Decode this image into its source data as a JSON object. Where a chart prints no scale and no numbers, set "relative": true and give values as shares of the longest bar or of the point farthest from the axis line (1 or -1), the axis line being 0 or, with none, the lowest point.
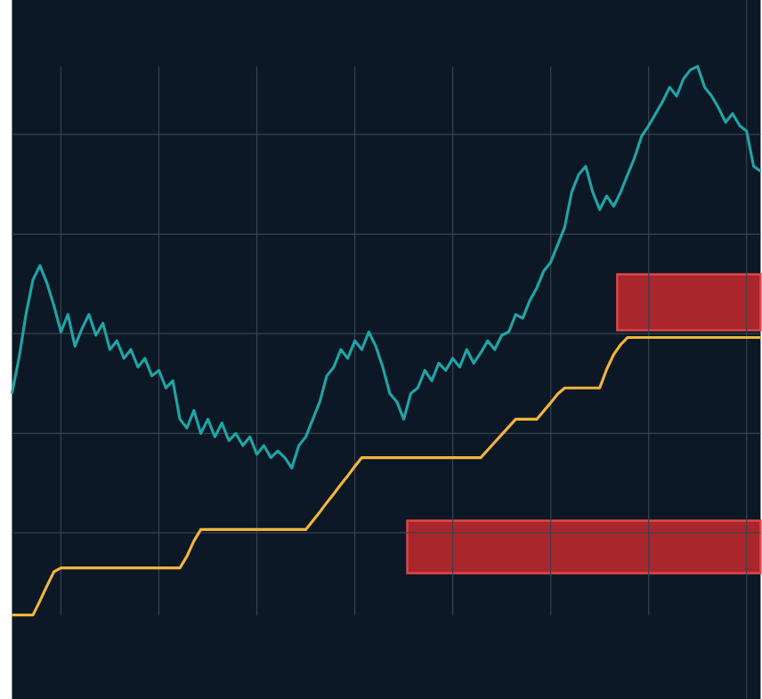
{
  "chart_data": {
    "type": "line",
    "relative": true,
    "grid": true,
    "categories": [
      null,
      null,
      null,
      null,
      null,
      null,
      null,
      null,
      null,
      null,
      null,
      null,
      null,
      null,
      null,
      null,
      null,
      null,
      null,
      null,
      null,
      null,
      null,
      null,
      null,
      null,
      null,
      null,
      null,
      null,
      null,
      null,
      null,
      null,
      null,
      null,
      null,
      null,
      null,
      null,
      null,
      null,
      null,
      null,
      null,
      null,
      null,
      null,
      null,
      null,
      null,
      null,
      null,
      null,
      null,
      null,
      null,
      null,
      null,
      null,
      null,
      null,
      null,
      null,
      null,
      null,
      null,
      null,
      null,
      null,
      null,
      null,
      null,
      null,
      null,
      null,
      null,
      null,
      null,
      null,
      null,
      null,
      null,
      null,
      null,
      null,
      null,
      null,
      null,
      null,
      null,
      null,
      null,
      null,
      null,
      null,
      null,
      null,
      null,
      null,
      null,
      null,
      null,
      null,
      null,
      null,
      null,
      null
    ],
    "series": [
      {
        "color": "#1fa5a5",
        "values": [
          0.404,
          0.468,
          0.548,
          0.611,
          0.637,
          0.605,
          0.564,
          0.516,
          0.548,
          0.49,
          0.522,
          0.548,
          0.51,
          0.532,
          0.484,
          0.5,
          0.468,
          0.484,
          0.452,
          0.468,
          0.436,
          0.446,
          0.414,
          0.427,
          0.357,
          0.341,
          0.373,
          0.331,
          0.357,
          0.325,
          0.35,
          0.318,
          0.331,
          0.309,
          0.325,
          0.293,
          0.309,
          0.287,
          0.299,
          0.287,
          0.268,
          0.309,
          0.325,
          0.357,
          0.389,
          0.436,
          0.452,
          0.484,
          0.468,
          0.5,
          0.484,
          0.516,
          0.49,
          0.452,
          0.404,
          0.389,
          0.357,
          0.404,
          0.414,
          0.446,
          0.427,
          0.459,
          0.446,
          0.468,
          0.452,
          0.484,
          0.459,
          0.478,
          0.5,
          0.484,
          0.51,
          0.516,
          0.548,
          0.541,
          0.573,
          0.596,
          0.627,
          0.643,
          0.675,
          0.707,
          0.771,
          0.803,
          0.818,
          0.771,
          0.739,
          0.764,
          0.745,
          0.771,
          0.803,
          0.834,
          0.873,
          0.892,
          0.914,
          0.936,
          0.962,
          0.946,
          0.978,
          0.994,
          1,
          0.962,
          0.946,
          0.924,
          0.898,
          0.914,
          0.892,
          0.882,
          0.818,
          0.809
        ]
      },
      {
        "color": "#f2b63c",
        "values": [
          0,
          0,
          0,
          0,
          0.026,
          0.053,
          0.079,
          0.086,
          0.086,
          0.086,
          0.086,
          0.086,
          0.086,
          0.086,
          0.086,
          0.086,
          0.086,
          0.086,
          0.086,
          0.086,
          0.086,
          0.086,
          0.086,
          0.086,
          0.086,
          0.107,
          0.135,
          0.156,
          0.156,
          0.156,
          0.156,
          0.156,
          0.156,
          0.156,
          0.156,
          0.156,
          0.156,
          0.156,
          0.156,
          0.156,
          0.156,
          0.156,
          0.156,
          0.172,
          0.188,
          0.205,
          0.221,
          0.238,
          0.254,
          0.271,
          0.287,
          0.287,
          0.287,
          0.287,
          0.287,
          0.287,
          0.287,
          0.287,
          0.287,
          0.287,
          0.287,
          0.287,
          0.287,
          0.287,
          0.287,
          0.287,
          0.287,
          0.287,
          0.301,
          0.315,
          0.329,
          0.343,
          0.357,
          0.357,
          0.357,
          0.357,
          0.372,
          0.387,
          0.403,
          0.414,
          0.414,
          0.414,
          0.414,
          0.414,
          0.414,
          0.448,
          0.475,
          0.493,
          0.506,
          0.506,
          0.506,
          0.506,
          0.506,
          0.506,
          0.506,
          0.506,
          0.506,
          0.506,
          0.506,
          0.506,
          0.506,
          0.506,
          0.506,
          0.506,
          0.506,
          0.506,
          0.506,
          0.506
        ]
      }
    ]
  }
}
